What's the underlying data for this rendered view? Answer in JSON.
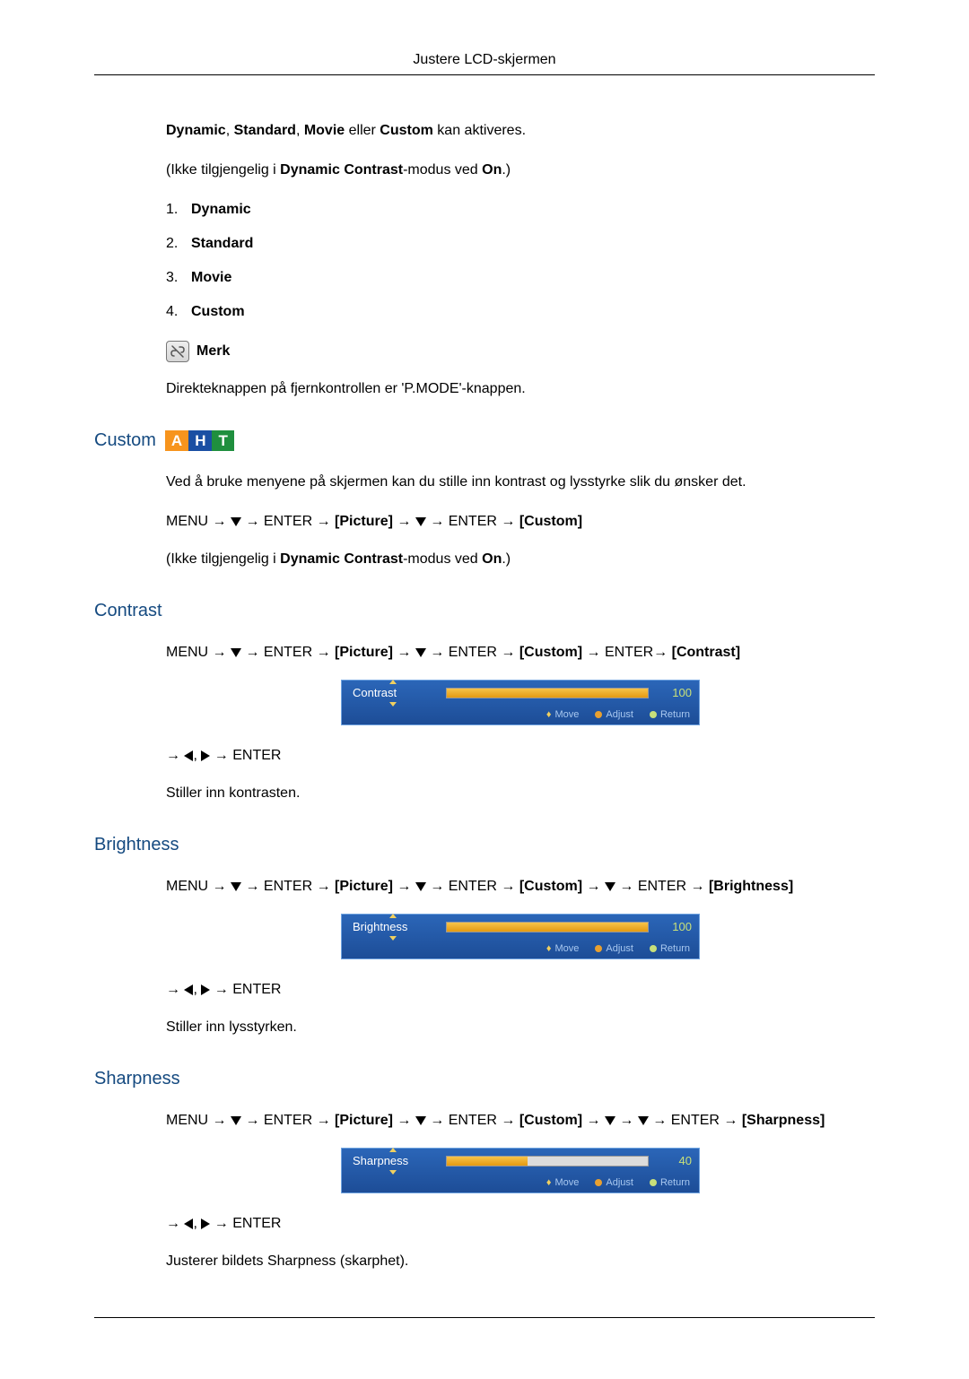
{
  "header": {
    "title": "Justere LCD-skjermen"
  },
  "intro": {
    "line1_pre": "",
    "line1_bold1": "Dynamic",
    "line1_sep1": ", ",
    "line1_bold2": "Standard",
    "line1_sep2": ", ",
    "line1_bold3": "Movie",
    "line1_mid": " eller ",
    "line1_bold4": "Custom",
    "line1_end": " kan aktiveres.",
    "na_prefix": "(Ikke tilgjengelig i ",
    "na_bold": "Dynamic Contrast",
    "na_mid": "-modus ved ",
    "na_on": "On",
    "na_suffix": ".)",
    "list": [
      "Dynamic",
      "Standard",
      "Movie",
      "Custom"
    ],
    "note_label": "Merk",
    "note_text": "Direkteknappen på fjernkontrollen er 'P.MODE'-knappen."
  },
  "custom": {
    "title": "Custom",
    "aht": {
      "a": "A",
      "h": "H",
      "t": "T"
    },
    "desc": "Ved å bruke menyene på skjermen kan du stille inn kontrast og lysstyrke slik du ønsker det.",
    "nav": {
      "menu": "MENU",
      "enter": "ENTER",
      "picture": "Picture",
      "custom": "Custom"
    },
    "na_prefix": "(Ikke tilgjengelig i ",
    "na_bold": "Dynamic Contrast",
    "na_mid": "-modus ved ",
    "na_on": "On",
    "na_suffix": ".)"
  },
  "contrast": {
    "title": "Contrast",
    "nav": {
      "menu": "MENU",
      "enter": "ENTER",
      "picture": "Picture",
      "custom": "Custom",
      "target": "Contrast"
    },
    "osd": {
      "label": "Contrast",
      "value": 100,
      "fill_pct": 100,
      "hints": {
        "move": "Move",
        "adjust": "Adjust",
        "return": "Return"
      },
      "bg_from": "#2b66b8",
      "bg_to": "#1d4d97",
      "fill_from": "#f6c34a",
      "fill_to": "#e39a12"
    },
    "enter": "ENTER",
    "desc": "Stiller inn kontrasten."
  },
  "brightness": {
    "title": "Brightness",
    "nav": {
      "menu": "MENU",
      "enter": "ENTER",
      "picture": "Picture",
      "custom": "Custom",
      "target": "Brightness"
    },
    "osd": {
      "label": "Brightness",
      "value": 100,
      "fill_pct": 100,
      "hints": {
        "move": "Move",
        "adjust": "Adjust",
        "return": "Return"
      }
    },
    "enter": "ENTER",
    "desc": "Stiller inn lysstyrken."
  },
  "sharpness": {
    "title": "Sharpness",
    "nav": {
      "menu": "MENU",
      "enter": "ENTER",
      "picture": "Picture",
      "custom": "Custom",
      "target": "Sharpness"
    },
    "osd": {
      "label": "Sharpness",
      "value": 40,
      "fill_pct": 40,
      "hints": {
        "move": "Move",
        "adjust": "Adjust",
        "return": "Return"
      }
    },
    "enter": "ENTER",
    "desc": "Justerer bildets Sharpness (skarphet)."
  }
}
